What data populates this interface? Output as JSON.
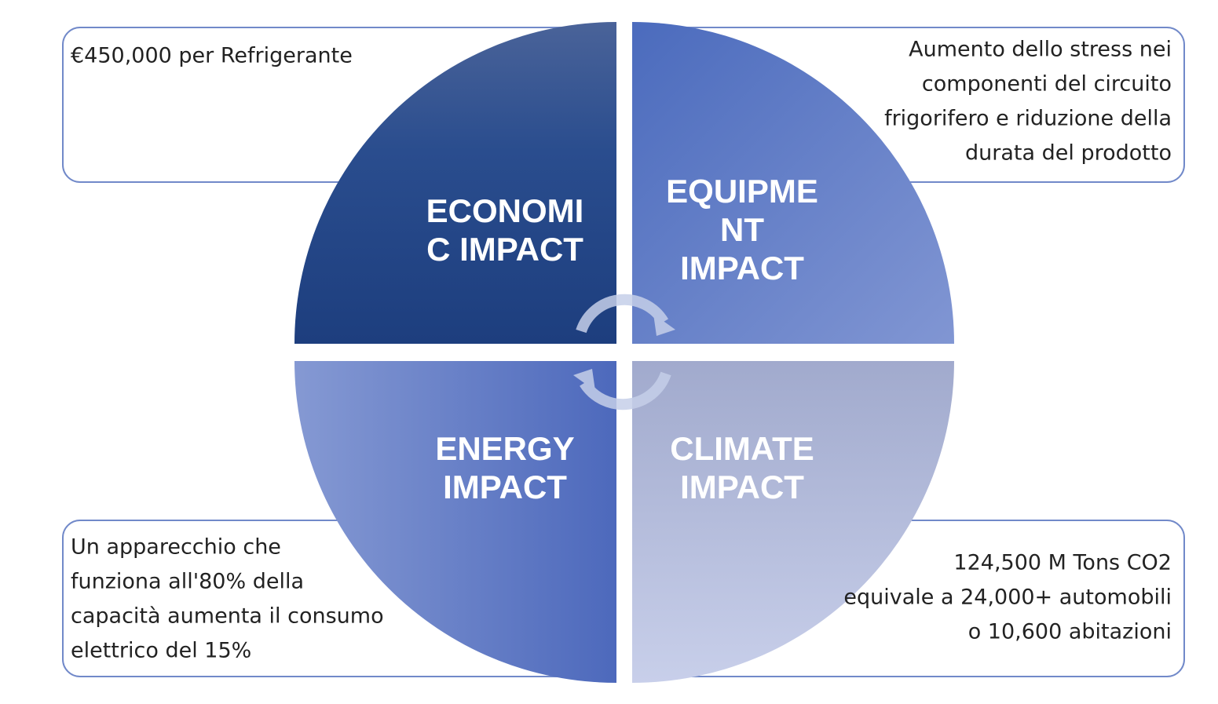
{
  "quadrants": [
    {
      "title": [
        "ECONOMI",
        "C IMPACT"
      ],
      "text": [
        "€450,000 per Refrigerante"
      ]
    },
    {
      "title": [
        "EQUIPME",
        "NT",
        "IMPACT"
      ],
      "text": [
        "Aumento dello stress nei",
        "componenti del circuito",
        "frigorifero e riduzione della",
        "durata del prodotto"
      ]
    },
    {
      "title": [
        "ENERGY",
        "IMPACT"
      ],
      "text": [
        "Un apparecchio che",
        "funziona all'80% della",
        "capacità aumenta il consumo",
        "elettrico del 15%"
      ]
    },
    {
      "title": [
        "CLIMATE",
        "IMPACT"
      ],
      "text": [
        "124,500 M Tons CO2",
        "equivale a 24,000+ automobili",
        "o 10,600 abitazioni"
      ]
    }
  ]
}
